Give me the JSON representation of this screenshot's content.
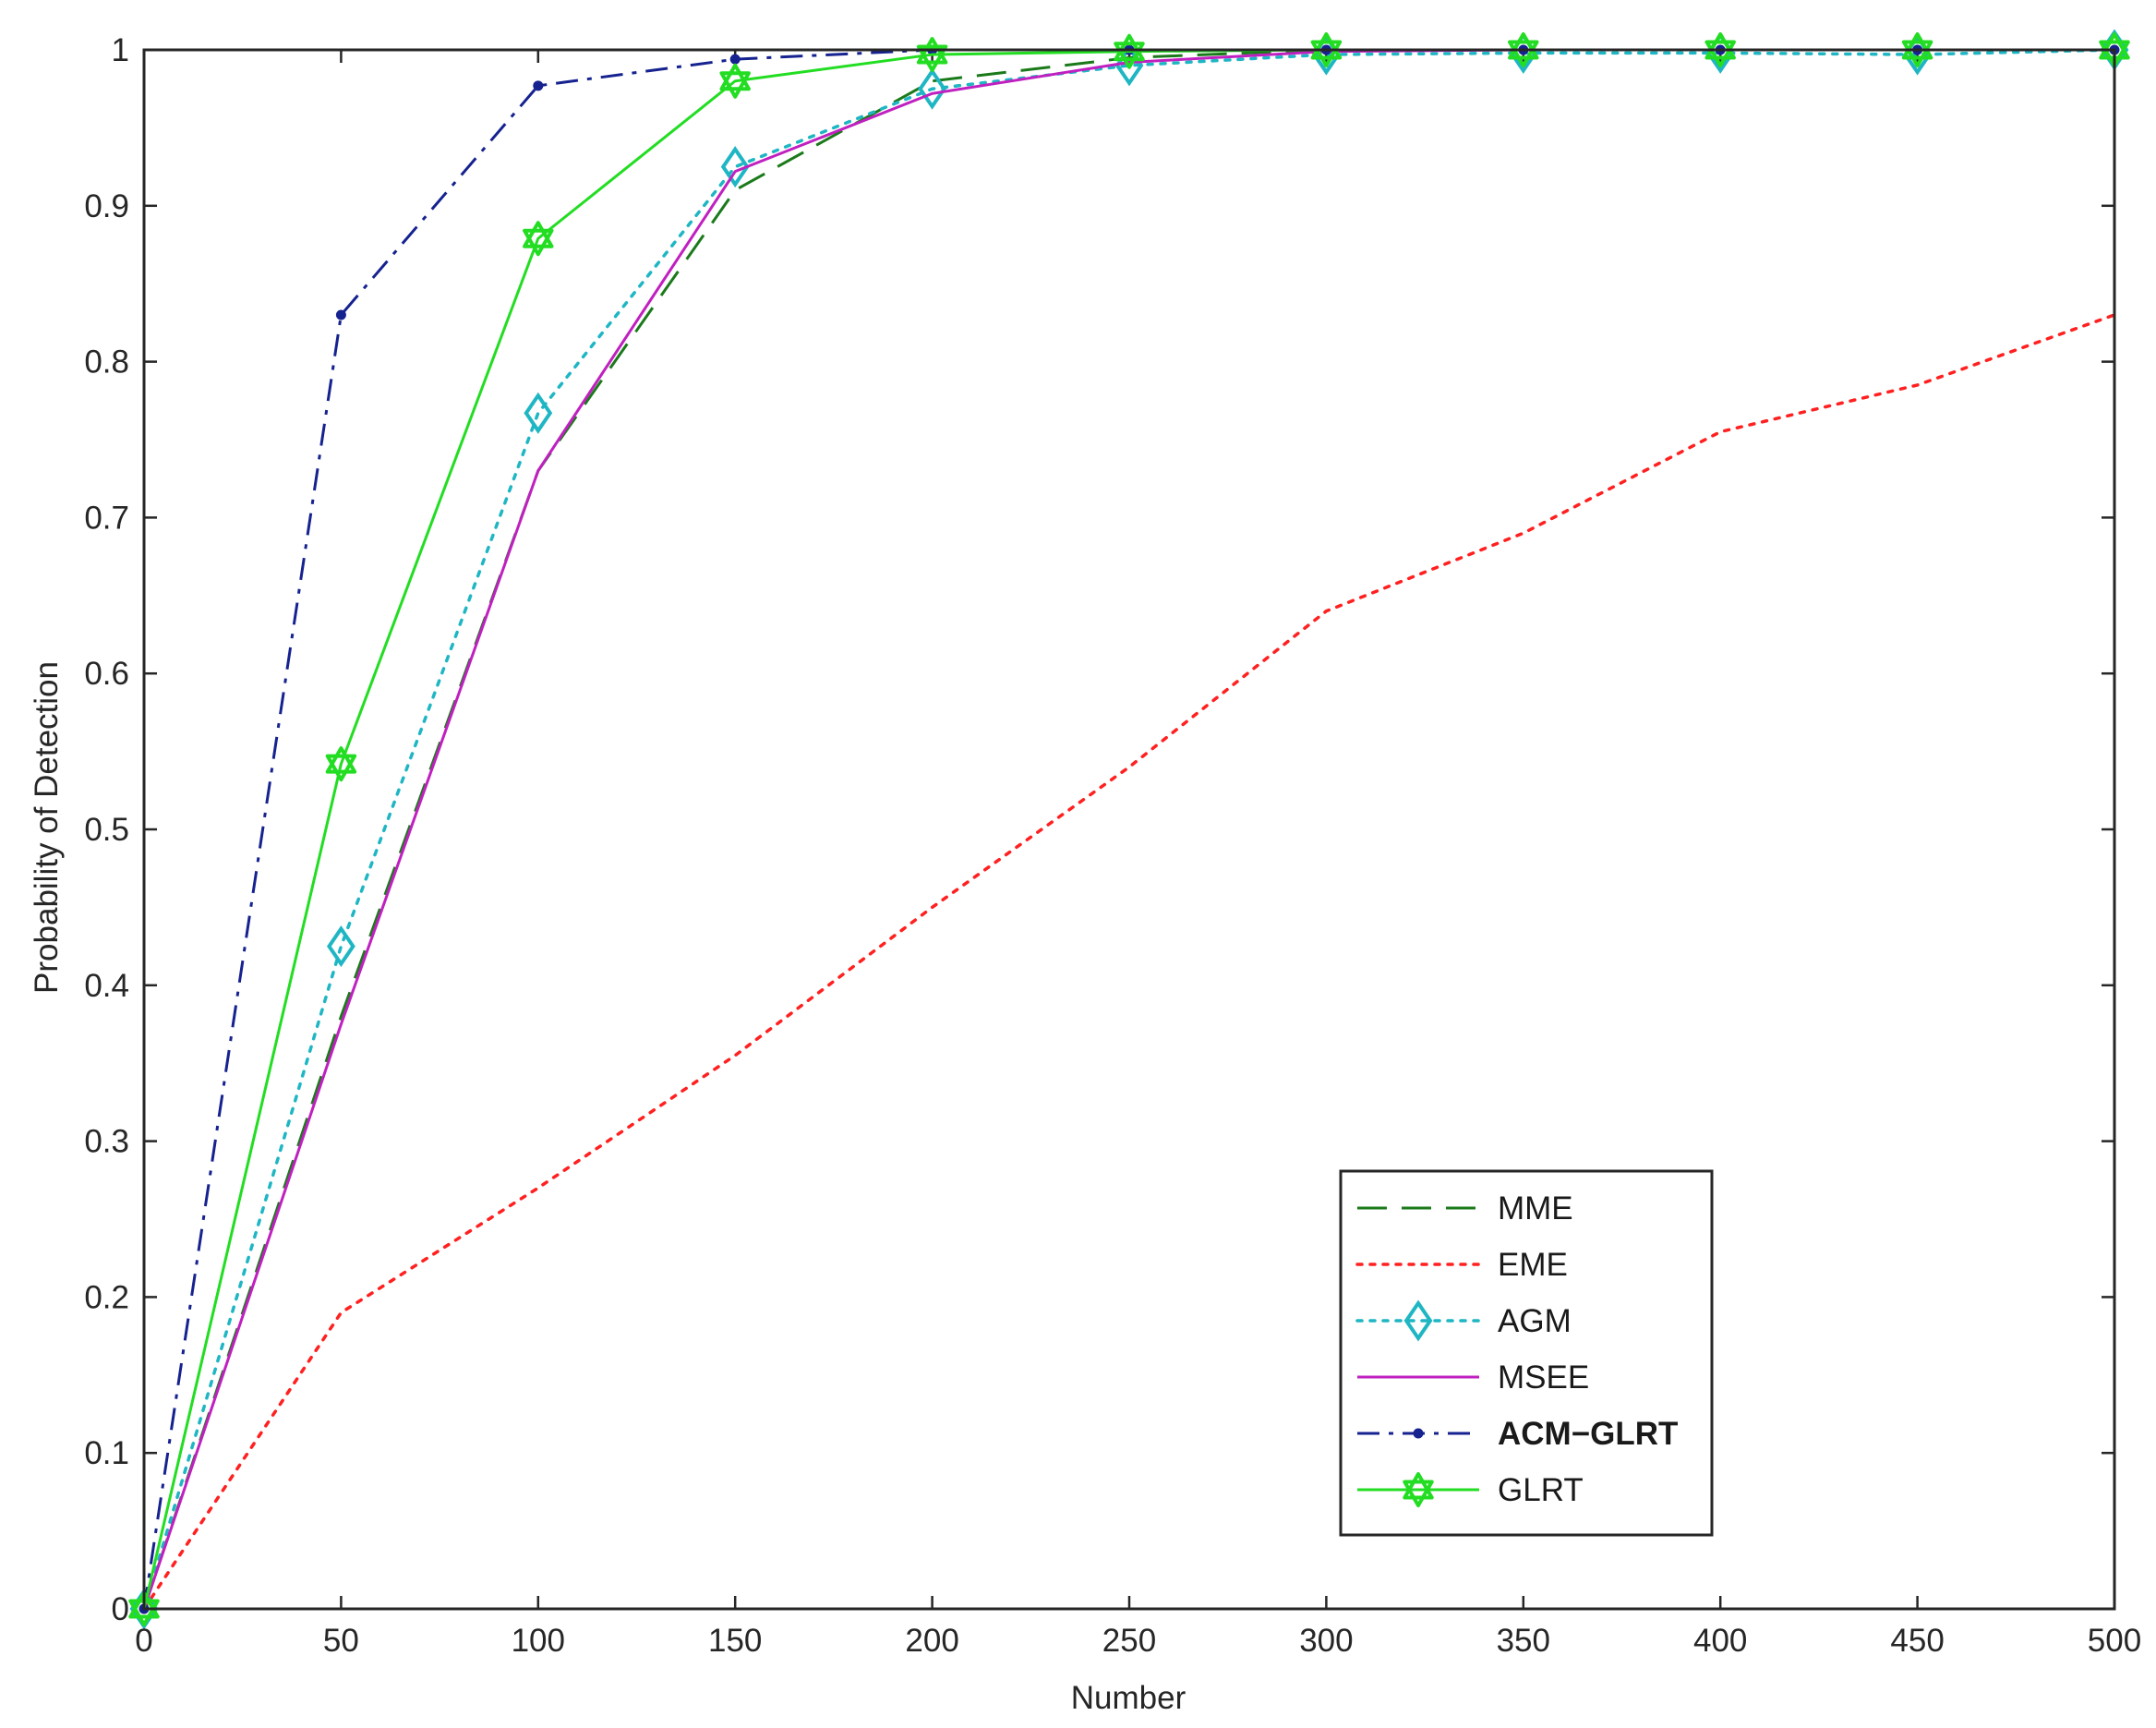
{
  "chart_data": {
    "type": "line",
    "title": "",
    "xlabel": "Number",
    "ylabel": "Probability of Detection",
    "xlim": [
      0,
      500
    ],
    "ylim": [
      0,
      1
    ],
    "xticks": [
      0,
      50,
      100,
      150,
      200,
      250,
      300,
      350,
      400,
      450,
      500
    ],
    "yticks": [
      0,
      0.1,
      0.2,
      0.3,
      0.4,
      0.5,
      0.6,
      0.7,
      0.8,
      0.9,
      1
    ],
    "xtick_labels": [
      "0",
      "50",
      "100",
      "150",
      "200",
      "250",
      "300",
      "350",
      "400",
      "450",
      "500"
    ],
    "ytick_labels": [
      "0",
      "0.1",
      "0.2",
      "0.3",
      "0.4",
      "0.5",
      "0.6",
      "0.7",
      "0.8",
      "0.9",
      "1"
    ],
    "grid": false,
    "legend_position": "bottom-right",
    "series": [
      {
        "name": "MME",
        "color": "#1a7a1a",
        "line_style": "dashed",
        "marker": "none",
        "x": [
          0,
          50,
          100,
          150,
          200,
          250,
          300,
          350,
          400,
          450,
          500
        ],
        "values": [
          0,
          0.38,
          0.73,
          0.91,
          0.98,
          0.995,
          1.0,
          1.0,
          1.0,
          1.0,
          1.0
        ]
      },
      {
        "name": "EME",
        "color": "#ff2020",
        "line_style": "dotted",
        "marker": "none",
        "x": [
          0,
          50,
          100,
          150,
          200,
          250,
          300,
          350,
          400,
          450,
          500
        ],
        "values": [
          0,
          0.19,
          0.27,
          0.355,
          0.45,
          0.54,
          0.64,
          0.69,
          0.755,
          0.785,
          0.83
        ]
      },
      {
        "name": "AGM",
        "color": "#1fb6c4",
        "line_style": "dotted",
        "marker": "diamond",
        "x": [
          0,
          50,
          100,
          150,
          200,
          250,
          300,
          350,
          400,
          450,
          500
        ],
        "values": [
          0,
          0.425,
          0.767,
          0.925,
          0.975,
          0.99,
          0.997,
          0.998,
          0.998,
          0.997,
          1.0
        ]
      },
      {
        "name": "MSEE",
        "color": "#c020c0",
        "line_style": "solid",
        "marker": "none",
        "x": [
          0,
          50,
          100,
          150,
          200,
          250,
          300,
          350,
          400,
          450,
          500
        ],
        "values": [
          0,
          0.375,
          0.73,
          0.922,
          0.972,
          0.992,
          0.999,
          1.0,
          1.0,
          1.0,
          1.0
        ]
      },
      {
        "name": "ACM−GLRT",
        "color": "#15228f",
        "line_style": "dashdot",
        "marker": "dot",
        "x": [
          0,
          50,
          100,
          150,
          200,
          250,
          300,
          350,
          400,
          450,
          500
        ],
        "values": [
          0,
          0.83,
          0.977,
          0.994,
          1.0,
          1.0,
          1.0,
          1.0,
          1.0,
          1.0,
          1.0
        ]
      },
      {
        "name": "GLRT",
        "color": "#22dd22",
        "line_style": "solid",
        "marker": "hexagram",
        "x": [
          0,
          50,
          100,
          150,
          200,
          250,
          300,
          350,
          400,
          450,
          500
        ],
        "values": [
          0,
          0.542,
          0.879,
          0.98,
          0.997,
          0.999,
          1.0,
          1.0,
          1.0,
          1.0,
          1.0
        ]
      }
    ]
  }
}
